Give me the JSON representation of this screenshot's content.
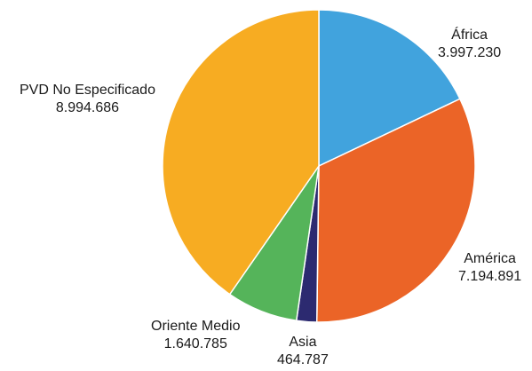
{
  "chart_data": {
    "type": "pie",
    "title": "",
    "start_angle_deg": 0,
    "direction": "clockwise",
    "slices": [
      {
        "label": "África",
        "value_label": "3.997.230",
        "value": 3997230,
        "color": "#41a3dd"
      },
      {
        "label": "América",
        "value_label": "7.194.891",
        "value": 7194891,
        "color": "#eb6427"
      },
      {
        "label": "Asia",
        "value_label": "464.787",
        "value": 464787,
        "color": "#2c2a70"
      },
      {
        "label": "Oriente Medio",
        "value_label": "1.640.785",
        "value": 1640785,
        "color": "#55b45a"
      },
      {
        "label": "PVD No Especificado",
        "value_label": "8.994.686",
        "value": 8994686,
        "color": "#f7ac22"
      }
    ]
  }
}
